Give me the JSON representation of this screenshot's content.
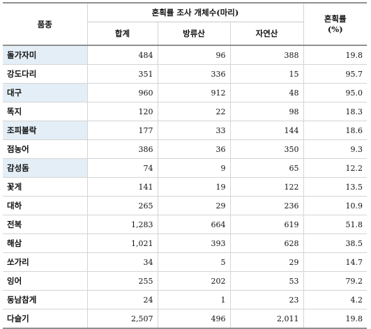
{
  "header": {
    "species": "품종",
    "group": "혼획률 조사 개체수(마리)",
    "total": "합계",
    "released": "방류산",
    "natural": "자연산",
    "rate_title": "혼획률",
    "rate_unit": "(%)"
  },
  "rows": [
    {
      "name": "돌가자미",
      "total": "484",
      "released": "96",
      "natural": "388",
      "rate": "19.8",
      "highlight": true
    },
    {
      "name": "강도다리",
      "total": "351",
      "released": "336",
      "natural": "15",
      "rate": "95.7",
      "highlight": false
    },
    {
      "name": "대구",
      "total": "960",
      "released": "912",
      "natural": "48",
      "rate": "95.0",
      "highlight": true
    },
    {
      "name": "똑지",
      "total": "120",
      "released": "22",
      "natural": "98",
      "rate": "18.3",
      "highlight": false
    },
    {
      "name": "조피볼락",
      "total": "177",
      "released": "33",
      "natural": "144",
      "rate": "18.6",
      "highlight": true
    },
    {
      "name": "점농어",
      "total": "386",
      "released": "36",
      "natural": "350",
      "rate": "9.3",
      "highlight": false
    },
    {
      "name": "감성돔",
      "total": "74",
      "released": "9",
      "natural": "65",
      "rate": "12.2",
      "highlight": true
    },
    {
      "name": "꽃게",
      "total": "141",
      "released": "19",
      "natural": "122",
      "rate": "13.5",
      "highlight": false
    },
    {
      "name": "대하",
      "total": "265",
      "released": "29",
      "natural": "236",
      "rate": "10.9",
      "highlight": false
    },
    {
      "name": "전복",
      "total": "1,283",
      "released": "664",
      "natural": "619",
      "rate": "51.8",
      "highlight": false
    },
    {
      "name": "해삼",
      "total": "1,021",
      "released": "393",
      "natural": "628",
      "rate": "38.5",
      "highlight": false
    },
    {
      "name": "쏘가리",
      "total": "34",
      "released": "5",
      "natural": "29",
      "rate": "14.7",
      "highlight": false
    },
    {
      "name": "잉어",
      "total": "255",
      "released": "202",
      "natural": "53",
      "rate": "79.2",
      "highlight": false
    },
    {
      "name": "동남참게",
      "total": "24",
      "released": "1",
      "natural": "23",
      "rate": "4.2",
      "highlight": false
    },
    {
      "name": "다슬기",
      "total": "2,507",
      "released": "496",
      "natural": "2,011",
      "rate": "19.8",
      "highlight": false
    }
  ]
}
